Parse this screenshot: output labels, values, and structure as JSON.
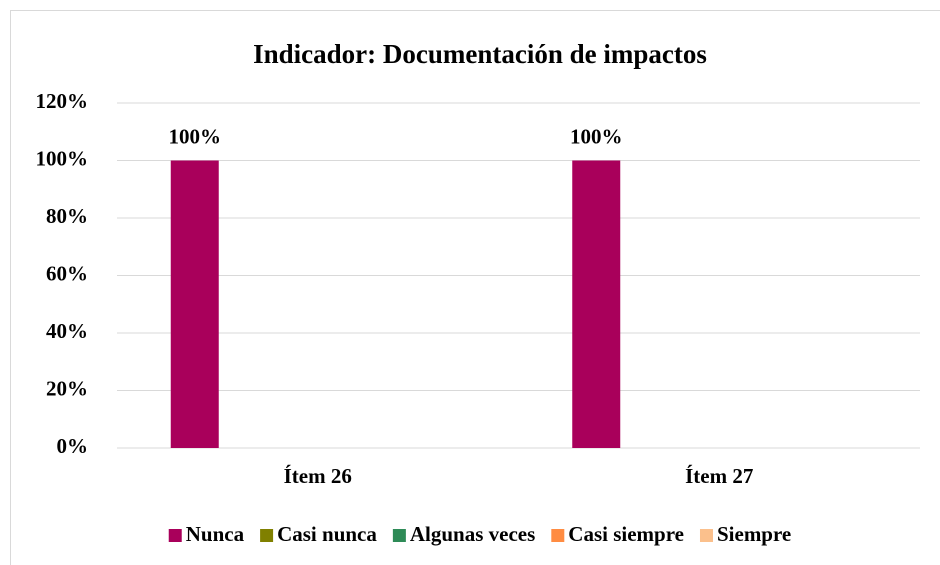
{
  "chart_data": {
    "type": "bar",
    "title": "Indicador: Documentación de impactos",
    "categories": [
      "Ítem 26",
      "Ítem 27"
    ],
    "series": [
      {
        "name": "Nunca",
        "color": "#a9005b",
        "values": [
          100,
          100
        ],
        "value_labels": [
          "100%",
          "100%"
        ]
      },
      {
        "name": "Casi nunca",
        "color": "#808000",
        "values": [
          0,
          0
        ]
      },
      {
        "name": "Algunas veces",
        "color": "#2e8b57",
        "values": [
          0,
          0
        ]
      },
      {
        "name": "Casi siempre",
        "color": "#ff8c42",
        "values": [
          0,
          0
        ]
      },
      {
        "name": "Siempre",
        "color": "#fbc08c",
        "values": [
          0,
          0
        ]
      }
    ],
    "ylim": [
      0,
      120
    ],
    "yticks": [
      {
        "value": 0,
        "label": "0%"
      },
      {
        "value": 20,
        "label": "20%"
      },
      {
        "value": 40,
        "label": "40%"
      },
      {
        "value": 60,
        "label": "60%"
      },
      {
        "value": 80,
        "label": "80%"
      },
      {
        "value": 100,
        "label": "100%"
      },
      {
        "value": 120,
        "label": "120%"
      }
    ],
    "grid": true,
    "legend": "bottom"
  }
}
